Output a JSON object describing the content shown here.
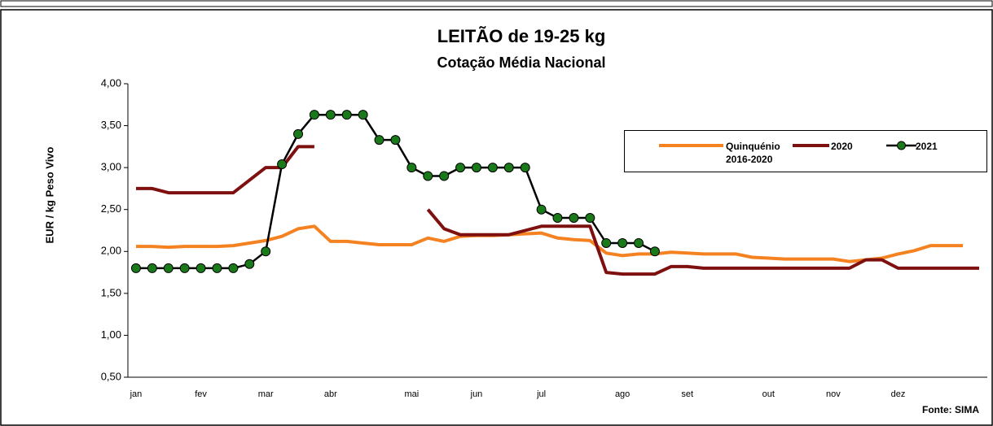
{
  "chart_data": {
    "type": "line",
    "title": "LEITÃO de 19-25 kg",
    "subtitle": "Cotação Média Nacional",
    "y_label": "EUR / kg Peso Vivo",
    "source": "Fonte: SIMA",
    "categories": [
      "jan",
      null,
      null,
      null,
      "fev",
      null,
      null,
      null,
      "mar",
      null,
      null,
      null,
      "abr",
      null,
      null,
      null,
      null,
      "mai",
      null,
      null,
      null,
      "jun",
      null,
      null,
      null,
      "jul",
      null,
      null,
      null,
      null,
      "ago",
      null,
      null,
      null,
      "set",
      null,
      null,
      null,
      null,
      "out",
      null,
      null,
      null,
      "nov",
      null,
      null,
      null,
      "dez",
      null,
      null,
      null,
      null,
      null
    ],
    "ylim": [
      0.5,
      4.0
    ],
    "yticks": [
      {
        "value": 0.5,
        "label": "0,50"
      },
      {
        "value": 1.0,
        "label": "1,00"
      },
      {
        "value": 1.5,
        "label": "1,50"
      },
      {
        "value": 2.0,
        "label": "2,00"
      },
      {
        "value": 2.5,
        "label": "2,50"
      },
      {
        "value": 3.0,
        "label": "3,00"
      },
      {
        "value": 3.5,
        "label": "3,50"
      },
      {
        "value": 4.0,
        "label": "4,00"
      }
    ],
    "grid": false,
    "legend": "top-right",
    "series": [
      {
        "name": "Quinquénio 2016-2020",
        "color": "#f58220",
        "markers": false,
        "values": [
          2.06,
          2.06,
          2.05,
          2.06,
          2.06,
          2.06,
          2.07,
          2.1,
          2.13,
          2.18,
          2.27,
          2.3,
          2.12,
          2.12,
          2.1,
          2.08,
          2.08,
          2.08,
          2.16,
          2.12,
          2.18,
          2.19,
          2.19,
          2.2,
          2.21,
          2.22,
          2.16,
          2.14,
          2.13,
          1.98,
          1.95,
          1.97,
          1.97,
          1.99,
          1.98,
          1.97,
          1.97,
          1.97,
          1.93,
          1.92,
          1.91,
          1.91,
          1.91,
          1.91,
          1.88,
          1.9,
          1.92,
          1.97,
          2.01,
          2.07,
          2.07,
          2.07,
          null
        ]
      },
      {
        "name": "2020",
        "color": "#7f1010",
        "markers": false,
        "values": [
          2.75,
          2.75,
          2.7,
          2.7,
          2.7,
          2.7,
          2.7,
          2.85,
          3.0,
          3.0,
          3.25,
          3.25,
          null,
          null,
          null,
          null,
          null,
          null,
          2.5,
          2.27,
          2.2,
          2.2,
          2.2,
          2.2,
          2.25,
          2.3,
          2.3,
          2.3,
          2.3,
          1.75,
          1.73,
          1.73,
          1.73,
          1.82,
          1.82,
          1.8,
          1.8,
          1.8,
          1.8,
          1.8,
          1.8,
          1.8,
          1.8,
          1.8,
          1.8,
          1.9,
          1.9,
          1.8,
          1.8,
          1.8,
          1.8,
          1.8,
          1.8
        ]
      },
      {
        "name": "2021",
        "color": "#000000",
        "markers": true,
        "marker_color": "#1a7a1a",
        "values": [
          1.8,
          1.8,
          1.8,
          1.8,
          1.8,
          1.8,
          1.8,
          1.85,
          2.0,
          3.04,
          3.4,
          3.63,
          3.63,
          3.63,
          3.63,
          3.33,
          3.33,
          3.0,
          2.9,
          2.9,
          3.0,
          3.0,
          3.0,
          3.0,
          3.0,
          2.5,
          2.4,
          2.4,
          2.4,
          2.1,
          2.1,
          2.1,
          2.0,
          null,
          null,
          null,
          null,
          null,
          null,
          null,
          null,
          null,
          null,
          null,
          null,
          null,
          null,
          null,
          null,
          null,
          null,
          null,
          null
        ]
      }
    ]
  }
}
